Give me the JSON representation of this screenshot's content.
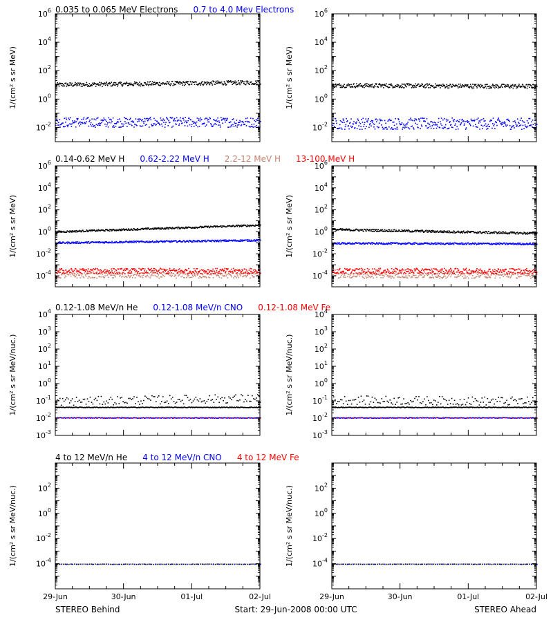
{
  "colors": {
    "black": "#000000",
    "blue": "#0000ff",
    "tan": "#c8826e",
    "red": "#ff0000"
  },
  "footer": {
    "left": "STEREO Behind",
    "center": "Start: 29-Jun-2008 00:00 UTC",
    "right": "STEREO Ahead"
  },
  "chart_data": [
    {
      "type": "scatter",
      "row": 0,
      "titles": [
        {
          "text": "0.035 to 0.065 MeV Electrons",
          "color": "#000000"
        },
        {
          "text": "0.7 to 4.0 Mev Electrons",
          "color": "#0000ff"
        }
      ],
      "ylabel": "1/(cm² s sr MeV)",
      "yscale": "log",
      "ylim": [
        0.001,
        1000000
      ],
      "yticks": [
        {
          "exp": "-2",
          "v": 0.01
        },
        {
          "exp": "0",
          "v": 1
        },
        {
          "exp": "2",
          "v": 100
        },
        {
          "exp": "4",
          "v": 10000
        },
        {
          "exp": "6",
          "v": 1000000
        }
      ],
      "xticks": [
        "29-Jun",
        "30-Jun",
        "01-Jul",
        "02-Jul"
      ],
      "xlim_days": 3,
      "panels": [
        {
          "name": "STEREO Behind",
          "series": [
            {
              "color": "#000000",
              "start": 11,
              "end": 16,
              "scatter": 0.15,
              "n": 380
            },
            {
              "color": "#0000ff",
              "start": 0.025,
              "end": 0.025,
              "scatter": 0.35,
              "n": 380
            }
          ]
        },
        {
          "name": "STEREO Ahead",
          "series": [
            {
              "color": "#000000",
              "start": 10,
              "end": 8.5,
              "scatter": 0.15,
              "n": 380
            },
            {
              "color": "#0000ff",
              "start": 0.02,
              "end": 0.02,
              "scatter": 0.4,
              "n": 380
            }
          ]
        }
      ]
    },
    {
      "type": "scatter",
      "row": 1,
      "titles": [
        {
          "text": "0.14-0.62 MeV H",
          "color": "#000000"
        },
        {
          "text": "0.62-2.22 MeV H",
          "color": "#0000ff"
        },
        {
          "text": "2.2-12 MeV H",
          "color": "#c8826e"
        },
        {
          "text": "13-100 MeV H",
          "color": "#ff0000"
        }
      ],
      "ylabel": "1/(cm² s sr MeV)",
      "yscale": "log",
      "ylim": [
        1e-05,
        1000000
      ],
      "yticks": [
        {
          "exp": "-4",
          "v": 0.0001
        },
        {
          "exp": "-2",
          "v": 0.01
        },
        {
          "exp": "0",
          "v": 1
        },
        {
          "exp": "2",
          "v": 100
        },
        {
          "exp": "4",
          "v": 10000
        },
        {
          "exp": "6",
          "v": 1000000
        }
      ],
      "xticks": [
        "29-Jun",
        "30-Jun",
        "01-Jul",
        "02-Jul"
      ],
      "xlim_days": 3,
      "panels": [
        {
          "name": "STEREO Behind",
          "series": [
            {
              "color": "#000000",
              "start": 1.1,
              "end": 4.5,
              "scatter": 0.08,
              "n": 380
            },
            {
              "color": "#0000ff",
              "start": 0.11,
              "end": 0.19,
              "scatter": 0.08,
              "n": 380
            },
            {
              "color": "#c8826e",
              "start": 0.00012,
              "end": 0.00012,
              "scatter": 0.25,
              "n": 300
            },
            {
              "color": "#ff0000",
              "start": 0.0003,
              "end": 0.0003,
              "scatter": 0.25,
              "n": 380
            }
          ]
        },
        {
          "name": "STEREO Ahead",
          "series": [
            {
              "color": "#000000",
              "start": 1.8,
              "end": 0.8,
              "scatter": 0.1,
              "n": 380
            },
            {
              "color": "#0000ff",
              "start": 0.1,
              "end": 0.09,
              "scatter": 0.08,
              "n": 380
            },
            {
              "color": "#c8826e",
              "start": 0.00012,
              "end": 0.00012,
              "scatter": 0.25,
              "n": 300
            },
            {
              "color": "#ff0000",
              "start": 0.0003,
              "end": 0.0003,
              "scatter": 0.25,
              "n": 380
            }
          ]
        }
      ]
    },
    {
      "type": "scatter",
      "row": 2,
      "titles": [
        {
          "text": "0.12-1.08 MeV/n He",
          "color": "#000000"
        },
        {
          "text": "0.12-1.08 MeV/n CNO",
          "color": "#0000ff"
        },
        {
          "text": "0.12-1.08 MeV Fe",
          "color": "#ff0000"
        }
      ],
      "ylabel": "1/(cm² s sr MeV/nuc.)",
      "yscale": "log",
      "ylim": [
        0.001,
        10000
      ],
      "yticks": [
        {
          "exp": "-3",
          "v": 0.001
        },
        {
          "exp": "-2",
          "v": 0.01
        },
        {
          "exp": "-1",
          "v": 0.1
        },
        {
          "exp": "0",
          "v": 1
        },
        {
          "exp": "1",
          "v": 10
        },
        {
          "exp": "2",
          "v": 100
        },
        {
          "exp": "3",
          "v": 1000
        },
        {
          "exp": "4",
          "v": 10000
        }
      ],
      "xticks": [
        "29-Jun",
        "30-Jun",
        "01-Jul",
        "02-Jul"
      ],
      "xlim_days": 3,
      "panels": [
        {
          "name": "STEREO Behind",
          "series": [
            {
              "color": "#000000",
              "start": 0.045,
              "end": 0.045,
              "scatter": 0.02,
              "n": 300
            },
            {
              "color": "#000000",
              "start": 0.1,
              "end": 0.15,
              "scatter": 0.25,
              "n": 150
            },
            {
              "color": "#0000ff",
              "start": 0.011,
              "end": 0.011,
              "scatter": 0.02,
              "n": 260
            },
            {
              "color": "#ff0000",
              "start": 0.011,
              "end": 0.011,
              "scatter": 0.02,
              "n": 60
            }
          ]
        },
        {
          "name": "STEREO Ahead",
          "series": [
            {
              "color": "#000000",
              "start": 0.045,
              "end": 0.045,
              "scatter": 0.02,
              "n": 300
            },
            {
              "color": "#000000",
              "start": 0.12,
              "end": 0.1,
              "scatter": 0.25,
              "n": 150
            },
            {
              "color": "#0000ff",
              "start": 0.011,
              "end": 0.011,
              "scatter": 0.02,
              "n": 260
            },
            {
              "color": "#ff0000",
              "start": 0.011,
              "end": 0.011,
              "scatter": 0.02,
              "n": 60
            }
          ]
        }
      ]
    },
    {
      "type": "scatter",
      "row": 3,
      "titles": [
        {
          "text": "4 to 12 MeV/n He",
          "color": "#000000"
        },
        {
          "text": "4 to 12 MeV/n CNO",
          "color": "#0000ff"
        },
        {
          "text": "4 to 12 MeV Fe",
          "color": "#ff0000"
        }
      ],
      "ylabel": "1/(cm² s sr MeV/nuc.)",
      "yscale": "log",
      "ylim": [
        1e-06,
        10000
      ],
      "yticks": [
        {
          "exp": "-4",
          "v": 0.0001
        },
        {
          "exp": "-2",
          "v": 0.01
        },
        {
          "exp": "0",
          "v": 1
        },
        {
          "exp": "2",
          "v": 100
        }
      ],
      "xticks": [
        "29-Jun",
        "30-Jun",
        "01-Jul",
        "02-Jul"
      ],
      "xlim_days": 3,
      "panels": [
        {
          "name": "STEREO Behind",
          "series": [
            {
              "color": "#000000",
              "start": 0.0001,
              "end": 0.0001,
              "scatter": 0.01,
              "n": 110
            },
            {
              "color": "#0000ff",
              "start": 0.0001,
              "end": 0.0001,
              "scatter": 0.01,
              "n": 40
            }
          ]
        },
        {
          "name": "STEREO Ahead",
          "series": [
            {
              "color": "#000000",
              "start": 0.0001,
              "end": 0.0001,
              "scatter": 0.01,
              "n": 110
            },
            {
              "color": "#0000ff",
              "start": 0.0001,
              "end": 0.0001,
              "scatter": 0.01,
              "n": 40
            }
          ]
        }
      ]
    }
  ]
}
